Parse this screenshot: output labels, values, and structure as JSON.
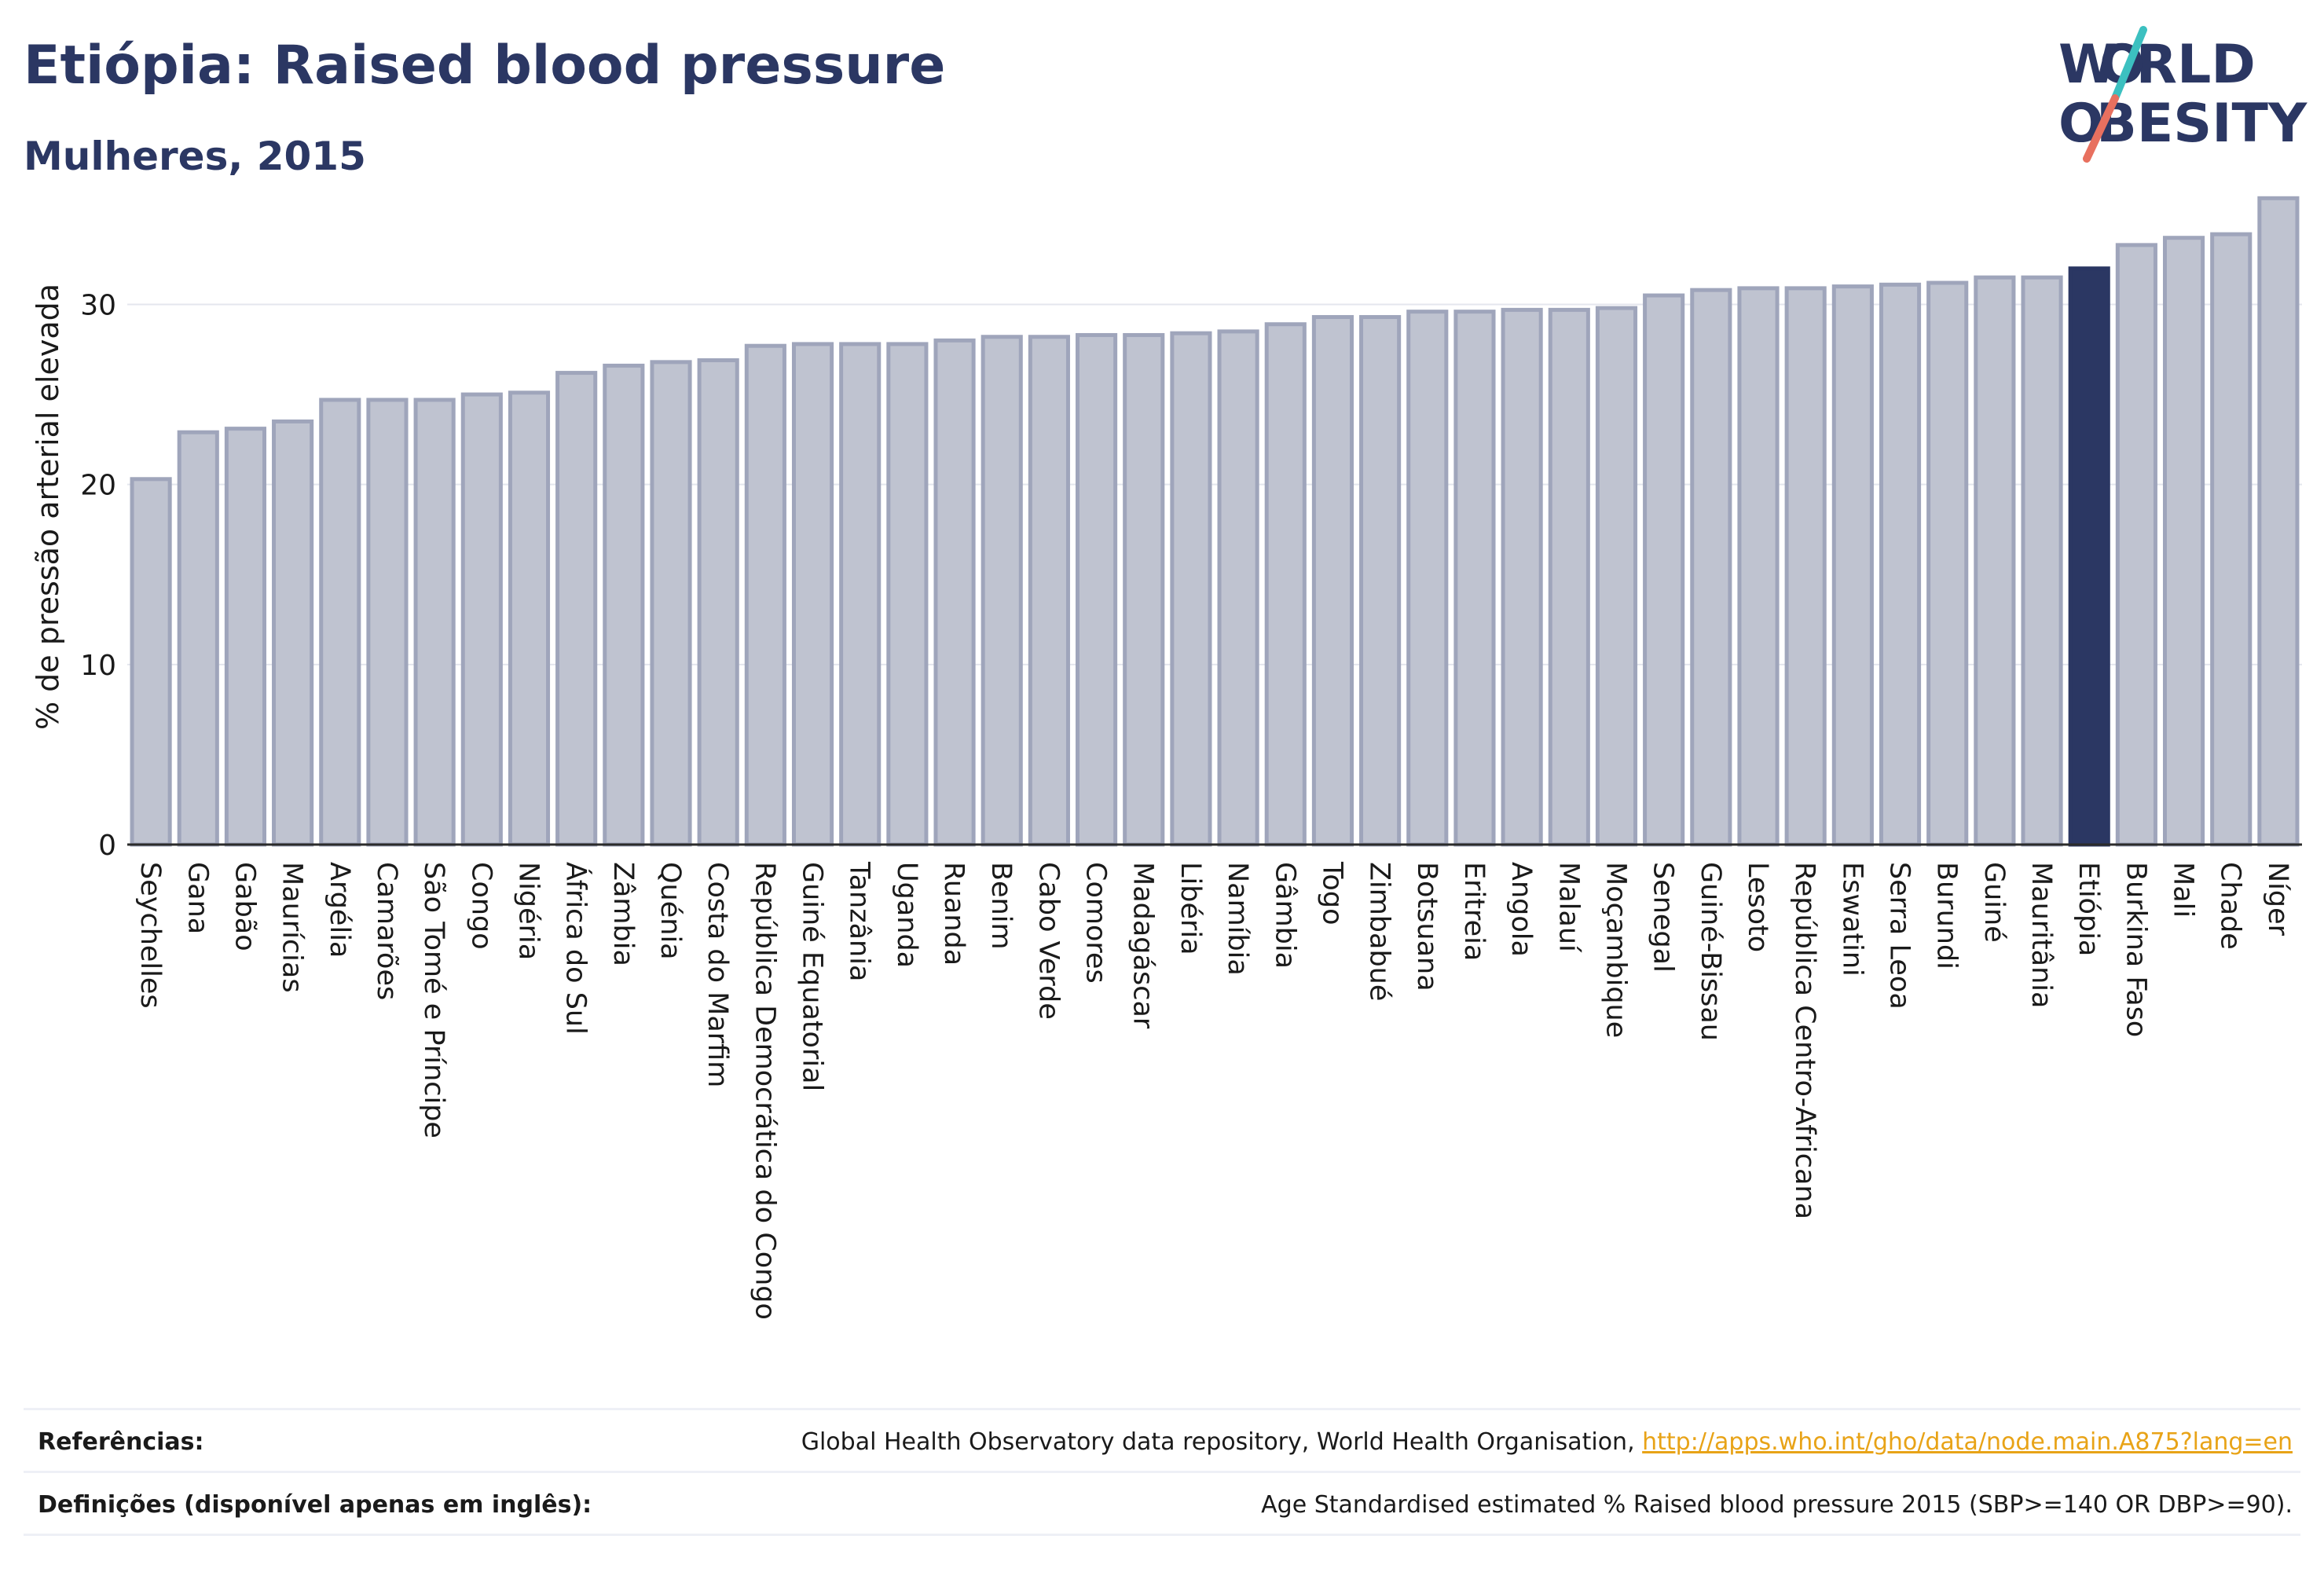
{
  "header": {
    "title": "Etiópia: Raised blood pressure",
    "subtitle": "Mulheres, 2015"
  },
  "logo": {
    "line1": "W RLD",
    "line2": "BESITY",
    "o_letter": "O"
  },
  "chart_data": {
    "type": "bar",
    "ylabel": "% de pressão arterial elevada",
    "ylim": [
      0,
      36
    ],
    "yticks": [
      0,
      10,
      20,
      30
    ],
    "grid": true,
    "highlight": "Etiópia",
    "colors": {
      "bar": "#bfc3d0",
      "bar_edge": "#9fa5bb",
      "highlight": "#2b3763",
      "grid": "#e4e6ee"
    },
    "categories": [
      "Seychelles",
      "Gana",
      "Gabão",
      "Maurícias",
      "Argélia",
      "Camarões",
      "São Tomé e Príncipe",
      "Congo",
      "Nigéria",
      "África do Sul",
      "Zâmbia",
      "Quénia",
      "Costa do Marfim",
      "República Democrática do Congo",
      "Guiné Equatorial",
      "Tanzânia",
      "Uganda",
      "Ruanda",
      "Benim",
      "Cabo Verde",
      "Comores",
      "Madagáscar",
      "Libéria",
      "Namíbia",
      "Gâmbia",
      "Togo",
      "Zimbabué",
      "Botsuana",
      "Eritreia",
      "Angola",
      "Malauí",
      "Moçambique",
      "Senegal",
      "Guiné-Bissau",
      "Lesoto",
      "República Centro-Africana",
      "Eswatini",
      "Serra Leoa",
      "Burundi",
      "Guiné",
      "Mauritânia",
      "Etiópia",
      "Burkina Faso",
      "Mali",
      "Chade",
      "Níger"
    ],
    "values": [
      20.3,
      22.9,
      23.1,
      23.5,
      24.7,
      24.7,
      24.7,
      25.0,
      25.1,
      26.2,
      26.6,
      26.8,
      26.9,
      27.7,
      27.8,
      27.8,
      27.8,
      28.0,
      28.2,
      28.2,
      28.3,
      28.3,
      28.4,
      28.5,
      28.9,
      29.3,
      29.3,
      29.6,
      29.6,
      29.7,
      29.7,
      29.8,
      30.5,
      30.8,
      30.9,
      30.9,
      31.0,
      31.1,
      31.2,
      31.5,
      31.5,
      32.0,
      33.3,
      33.7,
      33.9,
      35.9
    ]
  },
  "footer": {
    "references_label": "Referências:",
    "references_text": "Global Health Observatory data repository, World Health Organisation, ",
    "references_link": "http://apps.who.int/gho/data/node.main.A875?lang=en",
    "definitions_label": "Definições (disponível apenas em inglês):",
    "definitions_text": "Age Standardised estimated % Raised blood pressure 2015 (SBP>=140 OR DBP>=90)."
  }
}
